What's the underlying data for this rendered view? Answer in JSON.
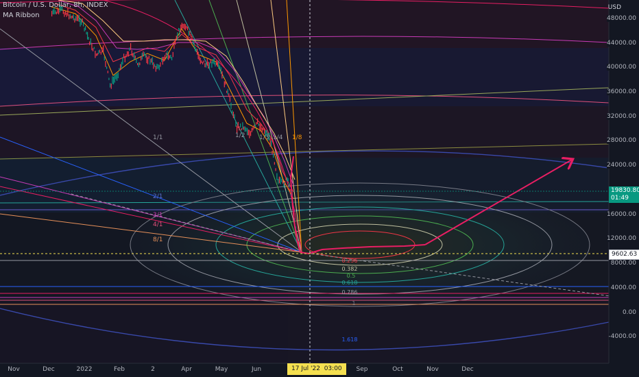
{
  "header": {
    "title": "Bitcoin / U.S. Dollar, 8h, INDEX",
    "indicator": "MA Ribbon",
    "currency": "USD"
  },
  "price_axis": {
    "labels": [
      "48000.00",
      "44000.00",
      "40000.00",
      "36000.00",
      "32000.00",
      "28000.00",
      "24000.00",
      "16000.00",
      "12000.00",
      "8000.00",
      "4000.00",
      "0.00",
      "-4000.00"
    ],
    "current_price": "19830.80",
    "current_countdown": "01:49",
    "crosshair_price": "9602.63"
  },
  "time_axis": {
    "months": [
      "Nov",
      "Dec",
      "2022",
      "Feb",
      "2",
      "Apr",
      "May",
      "Jun",
      "Sep",
      "Oct",
      "Nov",
      "Dec"
    ],
    "crosshair_date": "17 Jul '22",
    "crosshair_time": "03:00"
  },
  "gann_fan_labels": [
    {
      "text": "1/1",
      "color": "#9598a1"
    },
    {
      "text": "1/2",
      "color": "#9598a1"
    },
    {
      "text": "1/3",
      "color": "#9598a1"
    },
    {
      "text": "1/4",
      "color": "#9598a1"
    },
    {
      "text": "1/8",
      "color": "#ff9800"
    },
    {
      "text": "2/1",
      "color": "#5b6fd6"
    },
    {
      "text": "3/1",
      "color": "#c93bb8"
    },
    {
      "text": "4/1",
      "color": "#e0507a"
    },
    {
      "text": "8/1",
      "color": "#e8915a"
    }
  ],
  "fib_labels": [
    {
      "text": "0.236",
      "color": "#f23645"
    },
    {
      "text": "0.382",
      "color": "#c0c0a0"
    },
    {
      "text": "0.5",
      "color": "#4caf50"
    },
    {
      "text": "0.618",
      "color": "#26a69a"
    },
    {
      "text": "0.786",
      "color": "#9598a1"
    },
    {
      "text": "1",
      "color": "#787b86"
    },
    {
      "text": "1.618",
      "color": "#2962ff"
    }
  ],
  "colors": {
    "background": "#131722",
    "up": "#089981",
    "down": "#f23645",
    "projection": "#e91e63",
    "crosshair": "#f5e050"
  }
}
